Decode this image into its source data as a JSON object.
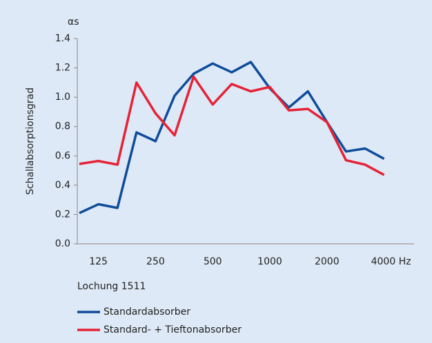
{
  "chart_data": {
    "type": "line",
    "y_axis_label": "Schallabsorptionsgrad",
    "y_unit": "αs",
    "legend_title": "Lochung 1511",
    "categories": [
      null,
      "125",
      null,
      null,
      "250",
      null,
      null,
      "500",
      null,
      null,
      "1000",
      null,
      null,
      "2000",
      null,
      null,
      "4000 Hz"
    ],
    "series": [
      {
        "name": "Standardabsorber",
        "color": "#0f4c9a",
        "values": [
          0.21,
          0.27,
          0.245,
          0.76,
          0.7,
          1.01,
          1.16,
          1.23,
          1.17,
          1.24,
          1.06,
          0.93,
          1.04,
          0.83,
          0.63,
          0.65,
          0.58
        ]
      },
      {
        "name": "Standard- + Tieftonabsorber",
        "color": "#e62236",
        "values": [
          0.545,
          0.565,
          0.54,
          1.1,
          0.89,
          0.74,
          1.14,
          0.95,
          1.09,
          1.04,
          1.07,
          0.91,
          0.92,
          0.83,
          0.57,
          0.54,
          0.47
        ]
      }
    ],
    "ylim": [
      0,
      1.4
    ],
    "yticks": [
      {
        "value": 0,
        "label": "0.0"
      },
      0.2,
      0.4,
      0.6,
      0.8,
      {
        "value": 1,
        "label": "1.0"
      },
      1.2,
      1.4
    ]
  }
}
